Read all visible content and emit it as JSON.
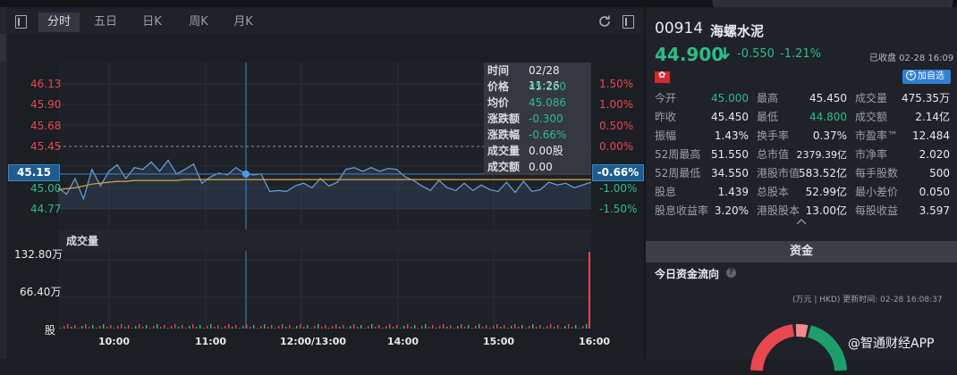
{
  "toolbar": {
    "tabs": [
      {
        "label": "分时",
        "active": true
      },
      {
        "label": "五日",
        "active": false
      },
      {
        "label": "日K",
        "active": false
      },
      {
        "label": "周K",
        "active": false
      },
      {
        "label": "月K",
        "active": false
      }
    ]
  },
  "price_axis": [
    "46.13",
    "45.90",
    "45.68",
    "45.45",
    "45.00",
    "44.77"
  ],
  "pct_axis": [
    "1.50%",
    "1.00%",
    "0.50%",
    "0.00%",
    "-1.00%",
    "-1.50%"
  ],
  "current_tag": {
    "price": "45.15",
    "pct": "-0.66%"
  },
  "tooltip": {
    "time_label": "时间",
    "time_value": "02/28 11:26",
    "price_label": "价格",
    "price_value": "45.150",
    "avg_label": "均价",
    "avg_value": "45.086",
    "chg_label": "涨跌额",
    "chg_value": "-0.300",
    "chgpct_label": "涨跌幅",
    "chgpct_value": "-0.66%",
    "vol_label": "成交量",
    "vol_value": "0.00股",
    "amt_label": "成交额",
    "amt_value": "0.00"
  },
  "volume": {
    "title": "成交量",
    "axis": [
      "132.80万",
      "66.40万",
      "股"
    ]
  },
  "time_axis": [
    "10:00",
    "11:00",
    "12:00/13:00",
    "14:00",
    "15:00",
    "16:00"
  ],
  "stock": {
    "code": "00914",
    "name": "海螺水泥",
    "price": "44.900",
    "change": "-0.550",
    "change_pct": "-1.21%",
    "status": "已收盘 02-28 16:09",
    "watch_button": "加自选",
    "flag": "hk-flag"
  },
  "stats": [
    [
      {
        "label": "今开",
        "value": "45.000",
        "color": "green"
      },
      {
        "label": "最高",
        "value": "45.450",
        "color": "white"
      },
      {
        "label": "成交量",
        "value": "475.35万",
        "color": "white"
      }
    ],
    [
      {
        "label": "昨收",
        "value": "45.450",
        "color": "white"
      },
      {
        "label": "最低",
        "value": "44.800",
        "color": "green"
      },
      {
        "label": "成交额",
        "value": "2.14亿",
        "color": "white"
      }
    ],
    [
      {
        "label": "振幅",
        "value": "1.43%",
        "color": "white"
      },
      {
        "label": "换手率",
        "value": "0.37%",
        "color": "white"
      },
      {
        "label": "市盈率™",
        "value": "12.484",
        "color": "white"
      }
    ],
    [
      {
        "label": "52周最高",
        "value": "51.550",
        "color": "white"
      },
      {
        "label": "总市值",
        "value": "2379.39亿",
        "color": "white"
      },
      {
        "label": "市净率",
        "value": "2.020",
        "color": "white"
      }
    ],
    [
      {
        "label": "52周最低",
        "value": "34.550",
        "color": "white"
      },
      {
        "label": "港股市值",
        "value": "583.52亿",
        "color": "white"
      },
      {
        "label": "每手股数",
        "value": "500",
        "color": "white"
      }
    ],
    [
      {
        "label": "股息",
        "value": "1.439",
        "color": "white"
      },
      {
        "label": "总股本",
        "value": "52.99亿",
        "color": "white"
      },
      {
        "label": "最小差价",
        "value": "0.050",
        "color": "white"
      }
    ],
    [
      {
        "label": "股息收益率",
        "value": "3.20%",
        "color": "white"
      },
      {
        "label": "港股股本",
        "value": "13.00亿",
        "color": "white"
      },
      {
        "label": "每股收益",
        "value": "3.597",
        "color": "white"
      }
    ]
  ],
  "funds": {
    "title": "资金",
    "flow_title": "今日资金流向",
    "updated": "(万元 | HKD) 更新时间: 02-28 16:08:37"
  },
  "watermark": "@智通财经APP",
  "chart_data": {
    "type": "line",
    "series": [
      {
        "name": "价格",
        "color": "#6ba3e0",
        "values": [
          45.0,
          44.93,
          45.1,
          44.88,
          45.2,
          45.02,
          45.18,
          45.25,
          45.1,
          45.22,
          45.2,
          45.28,
          45.18,
          45.3,
          45.15,
          45.2,
          45.26,
          45.05,
          45.12,
          45.16,
          45.14,
          45.22,
          45.16,
          45.14,
          45.15,
          44.96,
          44.97,
          44.96,
          45.02,
          45.05,
          45.0,
          45.1,
          45.02,
          45.06,
          45.2,
          45.22,
          45.18,
          45.22,
          45.18,
          45.21,
          45.2,
          45.12,
          45.08,
          45.02,
          44.97,
          45.08,
          45.0,
          44.97,
          45.05,
          44.97,
          45.03,
          44.98,
          44.96,
          45.06,
          44.95,
          45.07,
          44.96,
          44.98,
          45.06,
          45.03,
          45.05,
          45.0,
          45.03,
          45.06
        ]
      },
      {
        "name": "均价",
        "color": "#e0a63a",
        "values": [
          44.98,
          44.99,
          45.0,
          45.02,
          45.04,
          45.05,
          45.06,
          45.07,
          45.07,
          45.08,
          45.08,
          45.08,
          45.08,
          45.08,
          45.08,
          45.09,
          45.09,
          45.09,
          45.09,
          45.09,
          45.09,
          45.09,
          45.09,
          45.09,
          45.09,
          45.09,
          45.09,
          45.09,
          45.09,
          45.09,
          45.09,
          45.09,
          45.09,
          45.09,
          45.09,
          45.09,
          45.09,
          45.09,
          45.09,
          45.09,
          45.09,
          45.09,
          45.09,
          45.09,
          45.09,
          45.09,
          45.09,
          45.09,
          45.09,
          45.09,
          45.09,
          45.09,
          45.09,
          45.09,
          45.09,
          45.09,
          45.09,
          45.09,
          45.09,
          45.09,
          45.09,
          45.09,
          45.09,
          45.09
        ]
      }
    ],
    "prev_close": 45.45,
    "ylim": [
      44.77,
      46.13
    ],
    "x_ticks": [
      "10:00",
      "11:00",
      "12:00/13:00",
      "14:00",
      "15:00",
      "16:00"
    ],
    "volume_ylim": [
      0,
      1328000
    ]
  }
}
